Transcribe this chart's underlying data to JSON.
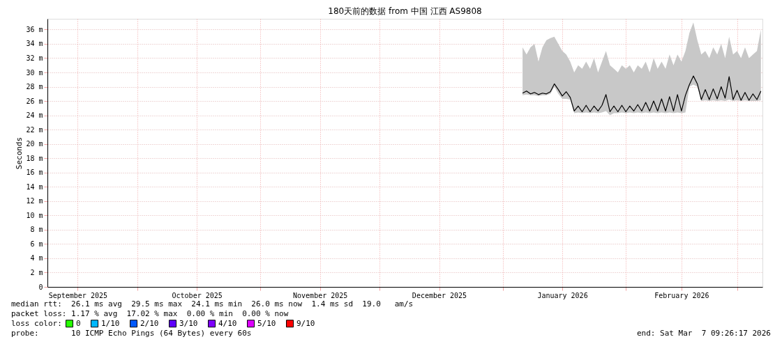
{
  "chart_data": {
    "type": "line",
    "title": "180天前的数据 from 中国 江西 AS9808",
    "ylabel": "Seconds",
    "x": [
      "2026-01-06",
      "2026-01-07",
      "2026-01-08",
      "2026-01-09",
      "2026-01-10",
      "2026-01-11",
      "2026-01-12",
      "2026-01-13",
      "2026-01-14",
      "2026-01-15",
      "2026-01-16",
      "2026-01-17",
      "2026-01-18",
      "2026-01-19",
      "2026-01-20",
      "2026-01-21",
      "2026-01-22",
      "2026-01-23",
      "2026-01-24",
      "2026-01-25",
      "2026-01-26",
      "2026-01-27",
      "2026-01-28",
      "2026-01-29",
      "2026-01-30",
      "2026-01-31",
      "2026-02-01",
      "2026-02-02",
      "2026-02-03",
      "2026-02-04",
      "2026-02-05",
      "2026-02-06",
      "2026-02-07",
      "2026-02-08",
      "2026-02-09",
      "2026-02-10",
      "2026-02-11",
      "2026-02-12",
      "2026-02-13",
      "2026-02-14",
      "2026-02-15",
      "2026-02-16",
      "2026-02-17",
      "2026-02-18",
      "2026-02-19",
      "2026-02-20",
      "2026-02-21",
      "2026-02-22",
      "2026-02-23",
      "2026-02-24",
      "2026-02-25",
      "2026-02-26",
      "2026-02-27",
      "2026-02-28",
      "2026-03-01",
      "2026-03-02",
      "2026-03-03",
      "2026-03-04",
      "2026-03-05",
      "2026-03-06",
      "2026-03-07"
    ],
    "series": [
      {
        "color": "#000000",
        "values": [
          27.1,
          27.4,
          27.0,
          27.2,
          26.9,
          27.1,
          27.0,
          27.3,
          28.4,
          27.6,
          26.7,
          27.3,
          26.5,
          24.6,
          25.3,
          24.5,
          25.4,
          24.5,
          25.3,
          24.6,
          25.4,
          26.9,
          24.5,
          25.3,
          24.5,
          25.4,
          24.5,
          25.3,
          24.6,
          25.5,
          24.6,
          25.8,
          24.6,
          26.0,
          24.6,
          26.3,
          24.6,
          26.6,
          24.6,
          26.9,
          24.6,
          26.8,
          28.3,
          29.5,
          28.4,
          26.2,
          27.6,
          26.2,
          27.7,
          26.3,
          28.0,
          26.4,
          29.4,
          26.2,
          27.5,
          26.1,
          27.2,
          26.1,
          27.0,
          26.2,
          27.4
        ],
        "lower": [
          26.8,
          26.9,
          26.8,
          26.8,
          26.7,
          26.8,
          26.8,
          27.0,
          28.0,
          27.0,
          26.3,
          26.3,
          26.2,
          24.3,
          24.4,
          24.3,
          24.4,
          24.3,
          24.4,
          24.3,
          24.4,
          24.6,
          24.0,
          24.3,
          24.3,
          24.4,
          24.3,
          24.4,
          24.3,
          24.4,
          24.3,
          24.4,
          24.3,
          24.4,
          24.3,
          24.4,
          24.3,
          24.4,
          24.3,
          24.4,
          24.3,
          24.4,
          28.0,
          28.3,
          28.0,
          26.0,
          26.1,
          26.0,
          26.1,
          26.0,
          26.1,
          26.0,
          26.2,
          26.0,
          26.1,
          26.0,
          26.1,
          26.0,
          26.0,
          26.0,
          26.1
        ],
        "upper": [
          33.5,
          32.5,
          33.5,
          34.0,
          31.5,
          33.5,
          34.5,
          34.8,
          35.0,
          34.0,
          33.0,
          32.5,
          31.5,
          30.0,
          31.0,
          30.5,
          31.5,
          30.5,
          32.0,
          30.0,
          31.5,
          33.0,
          31.0,
          30.5,
          30.0,
          31.0,
          30.5,
          31.0,
          30.0,
          31.0,
          30.5,
          31.5,
          30.0,
          32.0,
          30.5,
          31.5,
          30.5,
          32.5,
          31.0,
          32.5,
          31.5,
          33.0,
          35.5,
          37.0,
          34.5,
          32.5,
          33.0,
          32.0,
          33.5,
          32.5,
          34.0,
          32.0,
          35.0,
          32.5,
          33.0,
          32.0,
          33.5,
          32.0,
          32.5,
          33.0,
          36.0
        ]
      },
      {
        "type": "scatter",
        "name": "0",
        "color": "#26ff00",
        "values": [
          null,
          null,
          null,
          null,
          null,
          null,
          null,
          null,
          null,
          null,
          null,
          null,
          null,
          null,
          null,
          null,
          null,
          null,
          null,
          null,
          null,
          null,
          null,
          null,
          null,
          null,
          null,
          null,
          null,
          null,
          null,
          null,
          null,
          null,
          null,
          null,
          null,
          null,
          null,
          null,
          null,
          null,
          null,
          null,
          null,
          null,
          null,
          null,
          null,
          null,
          null,
          null,
          null,
          null,
          null,
          null,
          null,
          null,
          null,
          null,
          null
        ]
      },
      {
        "type": "scatter",
        "name": "1/10",
        "color": "#00b8ff",
        "values": [
          null,
          null,
          null,
          null,
          null,
          null,
          null,
          null,
          null,
          null,
          null,
          null,
          null,
          null,
          null,
          null,
          null,
          null,
          null,
          null,
          null,
          null,
          null,
          null,
          null,
          null,
          null,
          null,
          null,
          null,
          null,
          null,
          null,
          null,
          null,
          null,
          null,
          null,
          null,
          null,
          null,
          null,
          null,
          null,
          null,
          null,
          null,
          null,
          null,
          null,
          null,
          null,
          null,
          null,
          null,
          null,
          null,
          null,
          null,
          null,
          null
        ]
      },
      {
        "type": "scatter",
        "name": "2/10",
        "color": "#0059ff",
        "values": [
          null,
          null,
          null,
          null,
          null,
          null,
          null,
          null,
          null,
          null,
          null,
          null,
          null,
          null,
          null,
          null,
          null,
          null,
          null,
          null,
          null,
          null,
          null,
          null,
          null,
          null,
          null,
          null,
          null,
          null,
          null,
          null,
          null,
          null,
          null,
          null,
          null,
          null,
          null,
          null,
          null,
          null,
          null,
          null,
          null,
          null,
          null,
          null,
          null,
          null,
          null,
          null,
          null,
          null,
          null,
          null,
          null,
          null,
          null,
          null,
          null
        ]
      },
      {
        "type": "scatter",
        "name": "3/10",
        "color": "#5e00ff",
        "values": [
          null,
          null,
          null,
          null,
          null,
          null,
          null,
          null,
          null,
          null,
          null,
          null,
          null,
          null,
          null,
          null,
          null,
          null,
          null,
          null,
          null,
          null,
          null,
          null,
          null,
          null,
          null,
          null,
          null,
          null,
          null,
          null,
          null,
          null,
          null,
          null,
          null,
          null,
          null,
          null,
          null,
          null,
          null,
          null,
          null,
          null,
          null,
          null,
          null,
          null,
          null,
          null,
          null,
          null,
          null,
          null,
          null,
          null,
          null,
          null,
          null
        ]
      },
      {
        "type": "scatter",
        "name": "4/10",
        "color": "#7e00ff",
        "values": [
          null,
          null,
          null,
          null,
          null,
          null,
          null,
          null,
          null,
          null,
          null,
          null,
          null,
          null,
          null,
          null,
          null,
          null,
          null,
          null,
          null,
          null,
          null,
          null,
          null,
          null,
          null,
          null,
          null,
          null,
          null,
          null,
          null,
          null,
          null,
          null,
          null,
          null,
          null,
          null,
          null,
          null,
          null,
          null,
          null,
          null,
          null,
          null,
          null,
          null,
          null,
          null,
          null,
          null,
          null,
          null,
          null,
          null,
          null,
          null,
          null
        ]
      },
      {
        "type": "scatter",
        "name": "5/10",
        "color": "#dd00ff",
        "values": [
          null,
          null,
          null,
          null,
          null,
          null,
          null,
          null,
          null,
          null,
          null,
          null,
          null,
          null,
          null,
          null,
          null,
          null,
          null,
          null,
          null,
          null,
          null,
          null,
          null,
          null,
          null,
          null,
          null,
          null,
          null,
          null,
          null,
          null,
          null,
          null,
          null,
          null,
          null,
          null,
          null,
          null,
          null,
          null,
          null,
          null,
          null,
          null,
          null,
          null,
          null,
          null,
          null,
          null,
          null,
          null,
          null,
          null,
          null,
          null,
          null
        ]
      },
      {
        "type": "scatter",
        "name": "9/10",
        "color": "#ff0000",
        "values": [
          null,
          null,
          null,
          null,
          null,
          null,
          null,
          null,
          null,
          null,
          null,
          null,
          null,
          null,
          null,
          null,
          null,
          null,
          null,
          null,
          null,
          null,
          null,
          null,
          null,
          null,
          null,
          null,
          null,
          null,
          null,
          null,
          null,
          null,
          null,
          null,
          null,
          null,
          null,
          null,
          null,
          null,
          null,
          null,
          null,
          null,
          null,
          null,
          null,
          null,
          null,
          null,
          null,
          null,
          null,
          null,
          null,
          null,
          null,
          null,
          null
        ]
      }
    ],
    "legend_title": "loss color:",
    "legend": "bottom",
    "xlim": [
      "2025-09-08T09:26",
      "2026-03-07T09:26"
    ],
    "xticks": [
      {
        "value": "2025-09-16",
        "label": "September 2025"
      },
      {
        "value": "2025-10-01",
        "label": null
      },
      {
        "value": "2025-10-16",
        "label": "October 2025"
      },
      {
        "value": "2025-11-01",
        "label": null
      },
      {
        "value": "2025-11-16",
        "label": "November 2025"
      },
      {
        "value": "2025-12-01",
        "label": null
      },
      {
        "value": "2025-12-16",
        "label": "December 2025"
      },
      {
        "value": "2026-01-01",
        "label": null
      },
      {
        "value": "2026-01-16",
        "label": "January 2026"
      },
      {
        "value": "2026-02-01",
        "label": null
      },
      {
        "value": "2026-02-15",
        "label": "February 2026"
      },
      {
        "value": "2026-03-01",
        "label": null
      }
    ],
    "ylim": [
      0,
      37.5
    ],
    "yticks": [
      0,
      {
        "value": 2,
        "label": "2 m"
      },
      {
        "value": 4,
        "label": "4 m"
      },
      {
        "value": 6,
        "label": "6 m"
      },
      {
        "value": 8,
        "label": "8 m"
      },
      {
        "value": 10,
        "label": "10 m"
      },
      {
        "value": 12,
        "label": "12 m"
      },
      {
        "value": 14,
        "label": "14 m"
      },
      {
        "value": 16,
        "label": "16 m"
      },
      {
        "value": 18,
        "label": "18 m"
      },
      {
        "value": 20,
        "label": "20 m"
      },
      {
        "value": 22,
        "label": "22 m"
      },
      {
        "value": 24,
        "label": "24 m"
      },
      {
        "value": 26,
        "label": "26 m"
      },
      {
        "value": 28,
        "label": "28 m"
      },
      {
        "value": 30,
        "label": "30 m"
      },
      {
        "value": 32,
        "label": "32 m"
      },
      {
        "value": 34,
        "label": "34 m"
      },
      {
        "value": 36,
        "label": "36 m"
      }
    ],
    "grid": true,
    "marker": "none",
    "line_style": "solid",
    "annotations": [
      "median rtt:  26.1 ms avg  29.5 ms max  24.1 ms min  26.0 ms now  1.4 ms sd  19.0   am/s",
      "packet loss: 1.17 % avg  17.02 % max  0.00 % min  0.00 % now",
      "probe:       10 ICMP Echo Pings (64 Bytes) every 60s",
      "end: Sat Mar  7 09:26:17 2026"
    ]
  }
}
